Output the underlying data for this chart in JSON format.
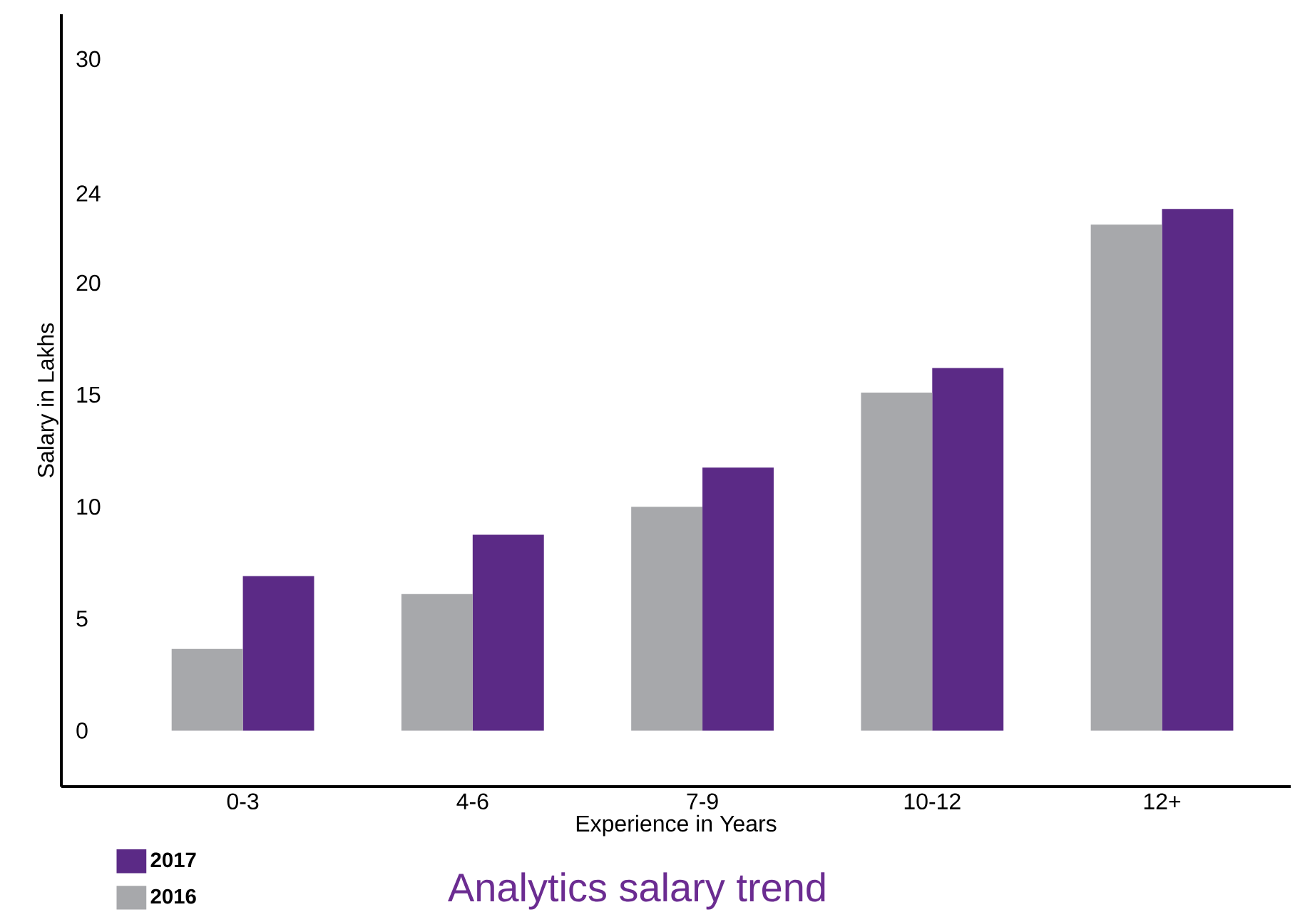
{
  "chart_data": {
    "type": "bar",
    "title": "Analytics salary trend",
    "xlabel": "Experience in Years",
    "ylabel": "Salary in Lakhs",
    "categories": [
      "0-3",
      "4-6",
      "7-9",
      "10-12",
      "12+"
    ],
    "series": [
      {
        "name": "2017",
        "color": "#5b2a86",
        "values": [
          6.9,
          8.75,
          11.75,
          16.2,
          23.3
        ]
      },
      {
        "name": "2016",
        "color": "#a7a8ab",
        "values": [
          3.65,
          6.1,
          10.0,
          15.1,
          22.6
        ]
      }
    ],
    "ylim": [
      -2.5,
      32
    ],
    "yticks": [
      0,
      5,
      10,
      15,
      20,
      24,
      30
    ],
    "grid": false,
    "legend": "bottom left"
  }
}
